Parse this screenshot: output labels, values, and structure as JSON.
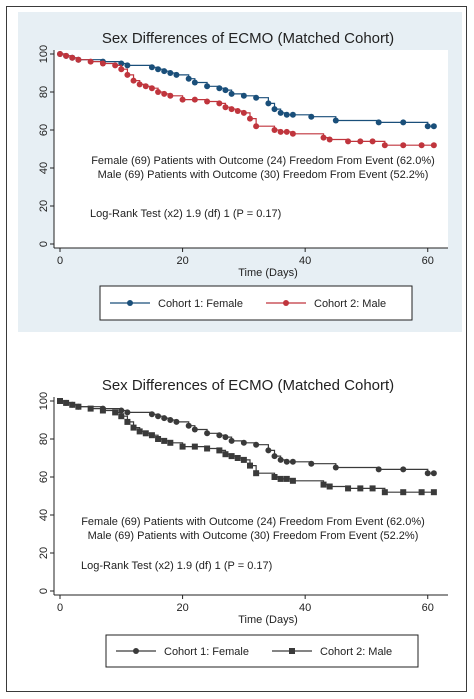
{
  "colors": {
    "female_color": "#1a4f7a",
    "male_color": "#c0353d",
    "bw_color": "#3a3a3a",
    "panel_bg": "#e7eff4"
  },
  "chart_data": [
    {
      "type": "line",
      "step": true,
      "style": "color",
      "title": "Sex Differences of ECMO (Matched Cohort)",
      "xlabel": "Time (Days)",
      "ylabel": "",
      "xlim": [
        0,
        62
      ],
      "ylim": [
        0,
        100
      ],
      "xticks": [
        0,
        20,
        40,
        60
      ],
      "yticks": [
        0,
        20,
        40,
        60,
        80,
        100
      ],
      "grid": false,
      "legend_position": "bottom",
      "annotations": [
        "Female (69) Patients with Outcome (24) Freedom From Event (62.0%)",
        "Male (69) Patients with Outcome (30) Freedom From Event (52.2%)",
        "Log-Rank Test (x2) 1.9 (df) 1 (P = 0.17)"
      ],
      "series": [
        {
          "name": "Cohort 1: Female",
          "marker": "circle",
          "x": [
            0,
            1,
            2,
            3,
            7,
            10,
            11,
            15,
            16,
            17,
            18,
            19,
            21,
            22,
            24,
            26,
            27,
            28,
            30,
            32,
            34,
            35,
            36,
            37,
            38,
            41,
            45,
            52,
            56,
            60,
            61
          ],
          "y": [
            100,
            99,
            98,
            97,
            96,
            95,
            94,
            93,
            92,
            91,
            90,
            89,
            87,
            85,
            83,
            82,
            81,
            79,
            78,
            77,
            74,
            71,
            69,
            68,
            68,
            67,
            65,
            64,
            64,
            62,
            62
          ]
        },
        {
          "name": "Cohort 2: Male",
          "marker": "circle",
          "x": [
            0,
            1,
            2,
            3,
            5,
            7,
            9,
            10,
            11,
            12,
            13,
            14,
            15,
            16,
            17,
            18,
            20,
            22,
            24,
            26,
            27,
            28,
            29,
            30,
            31,
            32,
            35,
            36,
            37,
            38,
            43,
            44,
            47,
            49,
            51,
            53,
            56,
            59,
            61
          ],
          "y": [
            100,
            99,
            98,
            97,
            96,
            95,
            94,
            92,
            89,
            86,
            84,
            83,
            82,
            80,
            79,
            78,
            76,
            76,
            75,
            74,
            72,
            71,
            70,
            69,
            66,
            62,
            60,
            59,
            59,
            58,
            56,
            55,
            54,
            54,
            54,
            52,
            52,
            52,
            52
          ]
        }
      ]
    },
    {
      "type": "line",
      "step": true,
      "style": "bw",
      "title": "Sex Differences of ECMO (Matched Cohort)",
      "xlabel": "Time (Days)",
      "ylabel": "",
      "xlim": [
        0,
        62
      ],
      "ylim": [
        0,
        100
      ],
      "xticks": [
        0,
        20,
        40,
        60
      ],
      "yticks": [
        0,
        20,
        40,
        60,
        80,
        100
      ],
      "grid": false,
      "legend_position": "bottom",
      "annotations": [
        "Female (69) Patients with Outcome (24) Freedom From Event (62.0%)",
        "Male (69) Patients with Outcome (30) Freedom From Event (52.2%)",
        "Log-Rank Test (x2) 1.9 (df) 1 (P = 0.17)"
      ],
      "series": [
        {
          "name": "Cohort 1: Female",
          "marker": "circle",
          "x": [
            0,
            1,
            2,
            3,
            7,
            10,
            11,
            15,
            16,
            17,
            18,
            19,
            21,
            22,
            24,
            26,
            27,
            28,
            30,
            32,
            34,
            35,
            36,
            37,
            38,
            41,
            45,
            52,
            56,
            60,
            61
          ],
          "y": [
            100,
            99,
            98,
            97,
            96,
            95,
            94,
            93,
            92,
            91,
            90,
            89,
            87,
            85,
            83,
            82,
            81,
            79,
            78,
            77,
            74,
            71,
            69,
            68,
            68,
            67,
            65,
            64,
            64,
            62,
            62
          ]
        },
        {
          "name": "Cohort 2: Male",
          "marker": "square",
          "x": [
            0,
            1,
            2,
            3,
            5,
            7,
            9,
            10,
            11,
            12,
            13,
            14,
            15,
            16,
            17,
            18,
            20,
            22,
            24,
            26,
            27,
            28,
            29,
            30,
            31,
            32,
            35,
            36,
            37,
            38,
            43,
            44,
            47,
            49,
            51,
            53,
            56,
            59,
            61
          ],
          "y": [
            100,
            99,
            98,
            97,
            96,
            95,
            94,
            92,
            89,
            86,
            84,
            83,
            82,
            80,
            79,
            78,
            76,
            76,
            75,
            74,
            72,
            71,
            70,
            69,
            66,
            62,
            60,
            59,
            59,
            58,
            56,
            55,
            54,
            54,
            54,
            52,
            52,
            52,
            52
          ]
        }
      ]
    }
  ]
}
